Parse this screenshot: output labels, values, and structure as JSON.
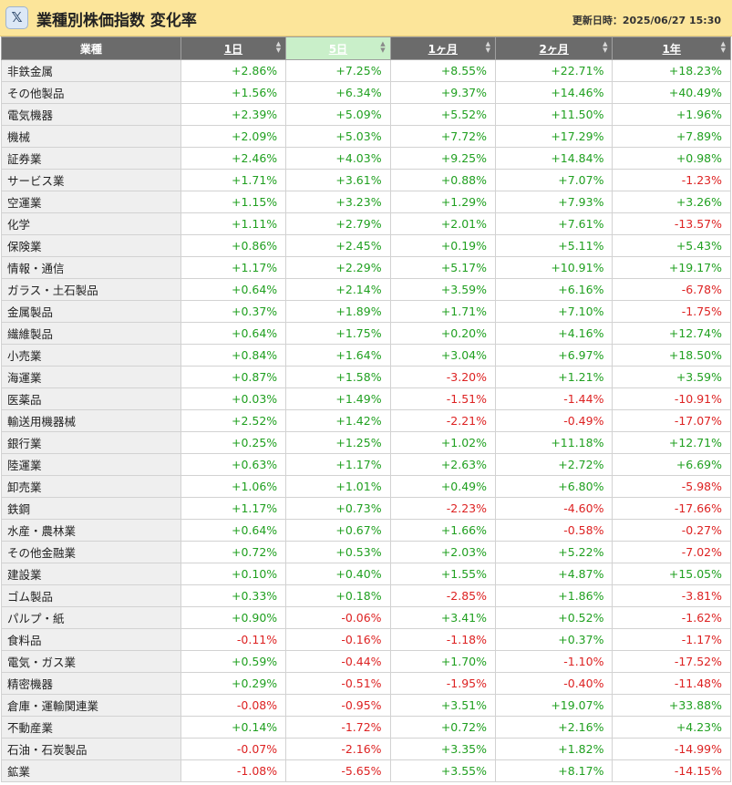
{
  "header": {
    "x_icon": "x-logo-icon",
    "title": "業種別株価指数 変化率",
    "updated": "更新日時：2025/06/27 15:30"
  },
  "colors": {
    "header_bg": "#fce59a",
    "positive": "#20a020",
    "negative": "#dd2222",
    "active_sort": "#c9efc9"
  },
  "columns": [
    "業種",
    "1日",
    "5日",
    "1ヶ月",
    "2ヶ月",
    "1年"
  ],
  "active_sort_column": 2,
  "rows": [
    [
      "非鉄金属",
      "+2.86%",
      "+7.25%",
      "+8.55%",
      "+22.71%",
      "+18.23%"
    ],
    [
      "その他製品",
      "+1.56%",
      "+6.34%",
      "+9.37%",
      "+14.46%",
      "+40.49%"
    ],
    [
      "電気機器",
      "+2.39%",
      "+5.09%",
      "+5.52%",
      "+11.50%",
      "+1.96%"
    ],
    [
      "機械",
      "+2.09%",
      "+5.03%",
      "+7.72%",
      "+17.29%",
      "+7.89%"
    ],
    [
      "証券業",
      "+2.46%",
      "+4.03%",
      "+9.25%",
      "+14.84%",
      "+0.98%"
    ],
    [
      "サービス業",
      "+1.71%",
      "+3.61%",
      "+0.88%",
      "+7.07%",
      "-1.23%"
    ],
    [
      "空運業",
      "+1.15%",
      "+3.23%",
      "+1.29%",
      "+7.93%",
      "+3.26%"
    ],
    [
      "化学",
      "+1.11%",
      "+2.79%",
      "+2.01%",
      "+7.61%",
      "-13.57%"
    ],
    [
      "保険業",
      "+0.86%",
      "+2.45%",
      "+0.19%",
      "+5.11%",
      "+5.43%"
    ],
    [
      "情報・通信",
      "+1.17%",
      "+2.29%",
      "+5.17%",
      "+10.91%",
      "+19.17%"
    ],
    [
      "ガラス・土石製品",
      "+0.64%",
      "+2.14%",
      "+3.59%",
      "+6.16%",
      "-6.78%"
    ],
    [
      "金属製品",
      "+0.37%",
      "+1.89%",
      "+1.71%",
      "+7.10%",
      "-1.75%"
    ],
    [
      "繊維製品",
      "+0.64%",
      "+1.75%",
      "+0.20%",
      "+4.16%",
      "+12.74%"
    ],
    [
      "小売業",
      "+0.84%",
      "+1.64%",
      "+3.04%",
      "+6.97%",
      "+18.50%"
    ],
    [
      "海運業",
      "+0.87%",
      "+1.58%",
      "-3.20%",
      "+1.21%",
      "+3.59%"
    ],
    [
      "医薬品",
      "+0.03%",
      "+1.49%",
      "-1.51%",
      "-1.44%",
      "-10.91%"
    ],
    [
      "輸送用機器械",
      "+2.52%",
      "+1.42%",
      "-2.21%",
      "-0.49%",
      "-17.07%"
    ],
    [
      "銀行業",
      "+0.25%",
      "+1.25%",
      "+1.02%",
      "+11.18%",
      "+12.71%"
    ],
    [
      "陸運業",
      "+0.63%",
      "+1.17%",
      "+2.63%",
      "+2.72%",
      "+6.69%"
    ],
    [
      "卸売業",
      "+1.06%",
      "+1.01%",
      "+0.49%",
      "+6.80%",
      "-5.98%"
    ],
    [
      "鉄鋼",
      "+1.17%",
      "+0.73%",
      "-2.23%",
      "-4.60%",
      "-17.66%"
    ],
    [
      "水産・農林業",
      "+0.64%",
      "+0.67%",
      "+1.66%",
      "-0.58%",
      "-0.27%"
    ],
    [
      "その他金融業",
      "+0.72%",
      "+0.53%",
      "+2.03%",
      "+5.22%",
      "-7.02%"
    ],
    [
      "建設業",
      "+0.10%",
      "+0.40%",
      "+1.55%",
      "+4.87%",
      "+15.05%"
    ],
    [
      "ゴム製品",
      "+0.33%",
      "+0.18%",
      "-2.85%",
      "+1.86%",
      "-3.81%"
    ],
    [
      "パルプ・紙",
      "+0.90%",
      "-0.06%",
      "+3.41%",
      "+0.52%",
      "-1.62%"
    ],
    [
      "食料品",
      "-0.11%",
      "-0.16%",
      "-1.18%",
      "+0.37%",
      "-1.17%"
    ],
    [
      "電気・ガス業",
      "+0.59%",
      "-0.44%",
      "+1.70%",
      "-1.10%",
      "-17.52%"
    ],
    [
      "精密機器",
      "+0.29%",
      "-0.51%",
      "-1.95%",
      "-0.40%",
      "-11.48%"
    ],
    [
      "倉庫・運輸関連業",
      "-0.08%",
      "-0.95%",
      "+3.51%",
      "+19.07%",
      "+33.88%"
    ],
    [
      "不動産業",
      "+0.14%",
      "-1.72%",
      "+0.72%",
      "+2.16%",
      "+4.23%"
    ],
    [
      "石油・石炭製品",
      "-0.07%",
      "-2.16%",
      "+3.35%",
      "+1.82%",
      "-14.99%"
    ],
    [
      "鉱業",
      "-1.08%",
      "-5.65%",
      "+3.55%",
      "+8.17%",
      "-14.15%"
    ]
  ]
}
